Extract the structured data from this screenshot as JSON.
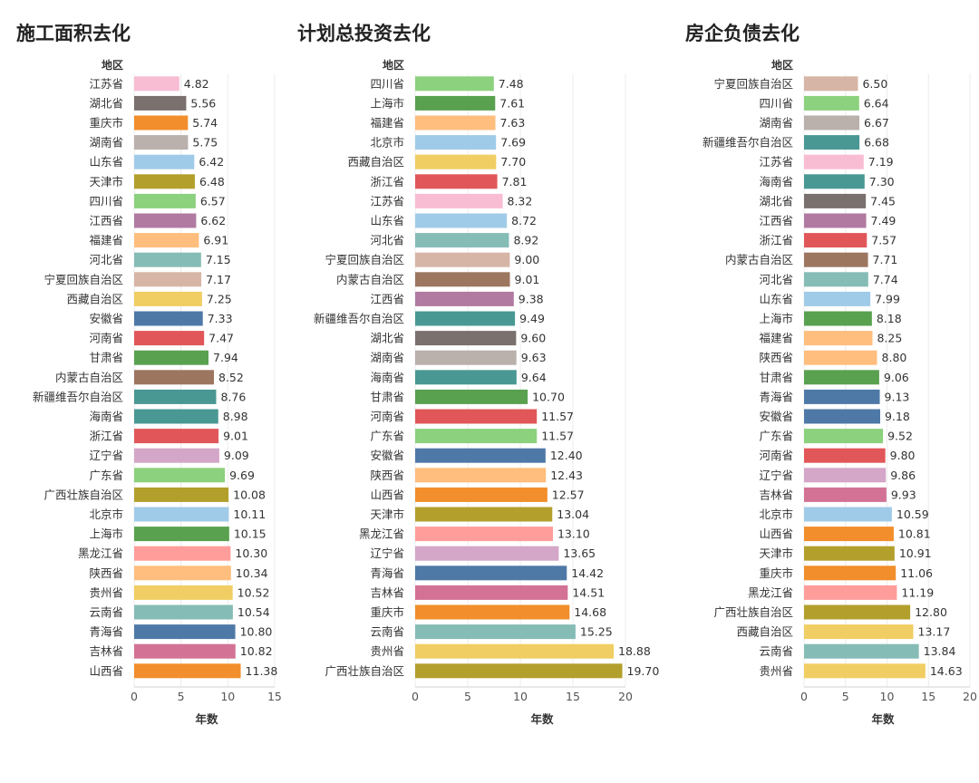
{
  "chart_data": [
    {
      "type": "bar",
      "orientation": "horizontal",
      "title": "施工面积去化",
      "category_header": "地区",
      "xlabel": "年数",
      "xlim": [
        0,
        15
      ],
      "xticks": [
        0,
        5,
        10,
        15
      ],
      "categories": [
        "江苏省",
        "湖北省",
        "重庆市",
        "湖南省",
        "山东省",
        "天津市",
        "四川省",
        "江西省",
        "福建省",
        "河北省",
        "宁夏回族自治区",
        "西藏自治区",
        "安徽省",
        "河南省",
        "甘肃省",
        "内蒙古自治区",
        "新疆维吾尔自治区",
        "海南省",
        "浙江省",
        "辽宁省",
        "广东省",
        "广西壮族自治区",
        "北京市",
        "上海市",
        "黑龙江省",
        "陕西省",
        "贵州省",
        "云南省",
        "青海省",
        "吉林省",
        "山西省"
      ],
      "values": [
        4.82,
        5.56,
        5.74,
        5.75,
        6.42,
        6.48,
        6.57,
        6.62,
        6.91,
        7.15,
        7.17,
        7.25,
        7.33,
        7.47,
        7.94,
        8.52,
        8.76,
        8.98,
        9.01,
        9.09,
        9.69,
        10.08,
        10.11,
        10.15,
        10.3,
        10.34,
        10.52,
        10.54,
        10.8,
        10.82,
        11.38
      ],
      "value_labels": [
        "4.82",
        "5.56",
        "5.74",
        "5.75",
        "6.42",
        "6.48",
        "6.57",
        "6.62",
        "6.91",
        "7.15",
        "7.17",
        "7.25",
        "7.33",
        "7.47",
        "7.94",
        "8.52",
        "8.76",
        "8.98",
        "9.01",
        "9.09",
        "9.69",
        "10.08",
        "10.11",
        "10.15",
        "10.30",
        "10.34",
        "10.52",
        "10.54",
        "10.80",
        "10.82",
        "11.38"
      ]
    },
    {
      "type": "bar",
      "orientation": "horizontal",
      "title": "计划总投资去化",
      "category_header": "地区",
      "xlabel": "年数",
      "xlim": [
        0,
        20
      ],
      "xticks": [
        0,
        5,
        10,
        15,
        20
      ],
      "categories": [
        "四川省",
        "上海市",
        "福建省",
        "北京市",
        "西藏自治区",
        "浙江省",
        "江苏省",
        "山东省",
        "河北省",
        "宁夏回族自治区",
        "内蒙古自治区",
        "江西省",
        "新疆维吾尔自治区",
        "湖北省",
        "湖南省",
        "海南省",
        "甘肃省",
        "河南省",
        "广东省",
        "安徽省",
        "陕西省",
        "山西省",
        "天津市",
        "黑龙江省",
        "辽宁省",
        "青海省",
        "吉林省",
        "重庆市",
        "云南省",
        "贵州省",
        "广西壮族自治区"
      ],
      "values": [
        7.48,
        7.61,
        7.63,
        7.69,
        7.7,
        7.81,
        8.32,
        8.72,
        8.92,
        9.0,
        9.01,
        9.38,
        9.49,
        9.6,
        9.63,
        9.64,
        10.7,
        11.57,
        11.57,
        12.4,
        12.43,
        12.57,
        13.04,
        13.1,
        13.65,
        14.42,
        14.51,
        14.68,
        15.25,
        18.88,
        19.7
      ],
      "value_labels": [
        "7.48",
        "7.61",
        "7.63",
        "7.69",
        "7.70",
        "7.81",
        "8.32",
        "8.72",
        "8.92",
        "9.00",
        "9.01",
        "9.38",
        "9.49",
        "9.60",
        "9.63",
        "9.64",
        "10.70",
        "11.57",
        "11.57",
        "12.40",
        "12.43",
        "12.57",
        "13.04",
        "13.10",
        "13.65",
        "14.42",
        "14.51",
        "14.68",
        "15.25",
        "18.88",
        "19.70"
      ]
    },
    {
      "type": "bar",
      "orientation": "horizontal",
      "title": "房企负债去化",
      "category_header": "地区",
      "xlabel": "年数",
      "xlim": [
        0,
        20
      ],
      "xticks": [
        0,
        5,
        10,
        15,
        20
      ],
      "categories": [
        "宁夏回族自治区",
        "四川省",
        "湖南省",
        "新疆维吾尔自治区",
        "江苏省",
        "海南省",
        "湖北省",
        "江西省",
        "浙江省",
        "内蒙古自治区",
        "河北省",
        "山东省",
        "上海市",
        "福建省",
        "陕西省",
        "甘肃省",
        "青海省",
        "安徽省",
        "广东省",
        "河南省",
        "辽宁省",
        "吉林省",
        "北京市",
        "山西省",
        "天津市",
        "重庆市",
        "黑龙江省",
        "广西壮族自治区",
        "西藏自治区",
        "云南省",
        "贵州省"
      ],
      "values": [
        6.5,
        6.64,
        6.67,
        6.68,
        7.19,
        7.3,
        7.45,
        7.49,
        7.57,
        7.71,
        7.74,
        7.99,
        8.18,
        8.25,
        8.8,
        9.06,
        9.13,
        9.18,
        9.52,
        9.8,
        9.86,
        9.93,
        10.59,
        10.81,
        10.91,
        11.06,
        11.19,
        12.8,
        13.17,
        13.84,
        14.63
      ],
      "value_labels": [
        "6.50",
        "6.64",
        "6.67",
        "6.68",
        "7.19",
        "7.30",
        "7.45",
        "7.49",
        "7.57",
        "7.71",
        "7.74",
        "7.99",
        "8.18",
        "8.25",
        "8.80",
        "9.06",
        "9.13",
        "9.18",
        "9.52",
        "9.80",
        "9.86",
        "9.93",
        "10.59",
        "10.81",
        "10.91",
        "11.06",
        "11.19",
        "12.80",
        "13.17",
        "13.84",
        "14.63"
      ]
    }
  ],
  "region_colors": {
    "江苏省": "#f8bcd3",
    "湖北省": "#7a706e",
    "重庆市": "#f28e2b",
    "湖南省": "#bab0ac",
    "山东省": "#a0cbe8",
    "天津市": "#b39f2c",
    "四川省": "#8cd17d",
    "江西省": "#b07aa1",
    "福建省": "#ffbe7d",
    "河北省": "#86bcb6",
    "宁夏回族自治区": "#d7b5a6",
    "西藏自治区": "#f1ce63",
    "安徽省": "#4e79a7",
    "河南省": "#e15759",
    "甘肃省": "#59a14f",
    "内蒙古自治区": "#9d7660",
    "新疆维吾尔自治区": "#499894",
    "海南省": "#499894",
    "浙江省": "#e15759",
    "辽宁省": "#d4a6c8",
    "广东省": "#8cd17d",
    "广西壮族自治区": "#b39f2c",
    "北京市": "#a0cbe8",
    "上海市": "#59a14f",
    "黑龙江省": "#ff9d9a",
    "陕西省": "#ffbe7d",
    "贵州省": "#f1ce63",
    "云南省": "#86bcb6",
    "青海省": "#4e79a7",
    "吉林省": "#d37295",
    "山西省": "#f28e2b"
  }
}
